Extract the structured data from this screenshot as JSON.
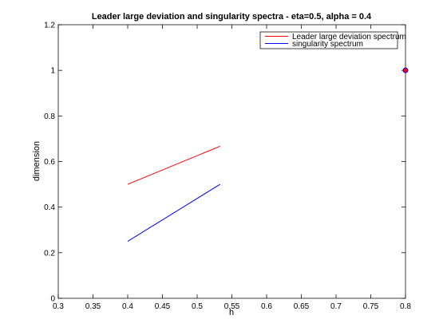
{
  "chart_data": {
    "type": "line",
    "title": "Leader large deviation and singularity spectra - eta=0.5, alpha = 0.4",
    "xlabel": "h",
    "ylabel": "dimension",
    "xlim": [
      0.3,
      0.8
    ],
    "ylim": [
      0,
      1.2
    ],
    "xticks": [
      "0.3",
      "0.35",
      "0.4",
      "0.45",
      "0.5",
      "0.55",
      "0.6",
      "0.65",
      "0.7",
      "0.75",
      "0.8"
    ],
    "yticks": [
      "0",
      "0.2",
      "0.4",
      "0.6",
      "0.8",
      "1",
      "1.2"
    ],
    "grid": false,
    "legend_position": "top-right",
    "series": [
      {
        "name": "Leader large deviation spectrum",
        "color": "#ff0000",
        "x": [
          0.4,
          0.533
        ],
        "y": [
          0.5,
          0.667
        ]
      },
      {
        "name": "singularity spectrum",
        "color": "#0000ff",
        "x": [
          0.4,
          0.533
        ],
        "y": [
          0.25,
          0.5
        ]
      }
    ],
    "markers": [
      {
        "x": 0.8,
        "y": 1.0,
        "edge_color": "#0000ff",
        "fill_color": "#ff0000"
      }
    ]
  }
}
